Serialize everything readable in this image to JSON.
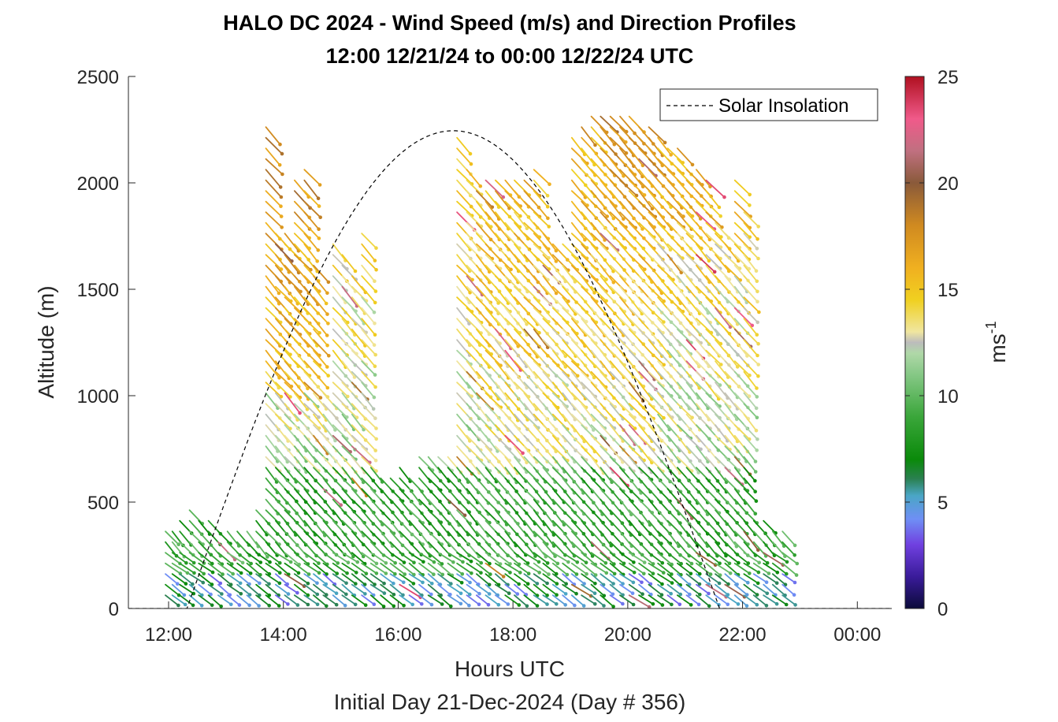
{
  "chart_data": {
    "type": "wind-barb-profile",
    "title_line1": "HALO DC 2024 - Wind Speed (m/s) and Direction Profiles",
    "title_line2": "12:00 12/21/24 to 00:00 12/22/24  UTC",
    "xlabel": "Hours UTC",
    "xlabel2": "Initial Day 21-Dec-2024 (Day # 356)",
    "ylabel": "Altitude (m)",
    "xlim": [
      11.3,
      24.6
    ],
    "ylim": [
      0,
      2500
    ],
    "x_ticks": [
      {
        "value": 12,
        "label": "12:00"
      },
      {
        "value": 14,
        "label": "14:00"
      },
      {
        "value": 16,
        "label": "16:00"
      },
      {
        "value": 18,
        "label": "18:00"
      },
      {
        "value": 20,
        "label": "20:00"
      },
      {
        "value": 22,
        "label": "22:00"
      },
      {
        "value": 24,
        "label": "00:00"
      }
    ],
    "y_ticks": [
      {
        "value": 0,
        "label": "0"
      },
      {
        "value": 500,
        "label": "500"
      },
      {
        "value": 1000,
        "label": "1000"
      },
      {
        "value": 1500,
        "label": "1500"
      },
      {
        "value": 2000,
        "label": "2000"
      },
      {
        "value": 2500,
        "label": "2500"
      }
    ],
    "colorbar": {
      "min": 0,
      "max": 25,
      "ticks": [
        {
          "value": 0,
          "label": "0"
        },
        {
          "value": 5,
          "label": "5"
        },
        {
          "value": 10,
          "label": "10"
        },
        {
          "value": 15,
          "label": "15"
        },
        {
          "value": 20,
          "label": "20"
        },
        {
          "value": 25,
          "label": "25"
        }
      ],
      "label": "ms",
      "label_sup": "-1",
      "stops": [
        {
          "v": 0,
          "c": "#0b0b3a"
        },
        {
          "v": 1.5,
          "c": "#3a1b9a"
        },
        {
          "v": 3,
          "c": "#7040e0"
        },
        {
          "v": 4.2,
          "c": "#6f8ff5"
        },
        {
          "v": 5.3,
          "c": "#4aa6c6"
        },
        {
          "v": 6.1,
          "c": "#2a8050"
        },
        {
          "v": 7,
          "c": "#0a8a0a"
        },
        {
          "v": 9,
          "c": "#3aa63a"
        },
        {
          "v": 11,
          "c": "#86c886"
        },
        {
          "v": 12,
          "c": "#b0d8a8"
        },
        {
          "v": 12.5,
          "c": "#bcbcbc"
        },
        {
          "v": 13,
          "c": "#f0e6a0"
        },
        {
          "v": 14.5,
          "c": "#f0d020"
        },
        {
          "v": 16,
          "c": "#f0b020"
        },
        {
          "v": 18,
          "c": "#d08a20"
        },
        {
          "v": 20,
          "c": "#8a5a3a"
        },
        {
          "v": 21.5,
          "c": "#c07080"
        },
        {
          "v": 23,
          "c": "#f05a8a"
        },
        {
          "v": 25,
          "c": "#b01020"
        }
      ]
    },
    "solar_insolation": {
      "name": "Solar Insolation",
      "rise_hour": 12.32,
      "set_hour": 21.6,
      "peak_altitude_scale": 2245
    },
    "profile_times": [
      12.0,
      12.12,
      12.25,
      12.42,
      12.58,
      12.75,
      12.92,
      13.08,
      13.25,
      13.42,
      13.58,
      13.75,
      13.92,
      14.08,
      14.25,
      14.42,
      14.58,
      14.75,
      14.92,
      15.08,
      15.25,
      15.42,
      15.58,
      15.75,
      15.92,
      16.08,
      16.25,
      16.42,
      16.58,
      16.75,
      16.92,
      17.08,
      17.25,
      17.42,
      17.58,
      17.75,
      17.92,
      18.08,
      18.25,
      18.42,
      18.58,
      18.75,
      18.92,
      19.08,
      19.25,
      19.42,
      19.58,
      19.75,
      19.92,
      20.08,
      20.25,
      20.42,
      20.58,
      20.75,
      20.92,
      21.08,
      21.25,
      21.42,
      21.58,
      21.75,
      21.92,
      22.08,
      22.25,
      22.42,
      22.58,
      22.75
    ],
    "profile_tops": [
      350,
      380,
      420,
      470,
      420,
      400,
      380,
      360,
      360,
      360,
      440,
      2280,
      1760,
      1750,
      2000,
      2080,
      1620,
      1000,
      1700,
      1660,
      1560,
      1780,
      640,
      620,
      620,
      640,
      620,
      700,
      700,
      720,
      700,
      2230,
      2060,
      1940,
      2000,
      2020,
      2030,
      2020,
      2000,
      2040,
      1780,
      1700,
      1720,
      2200,
      2260,
      2300,
      2300,
      2330,
      2310,
      2290,
      2280,
      2250,
      2220,
      2160,
      2140,
      2080,
      2050,
      2020,
      1800,
      1780,
      1990,
      1850,
      420,
      400,
      380,
      350
    ],
    "arrow_direction": "northwest-to-southeast, pointing downward-right",
    "note": "Each profile is a vertical column of wind barbs from ~40 m up to the listed top altitude, colored by speed."
  }
}
